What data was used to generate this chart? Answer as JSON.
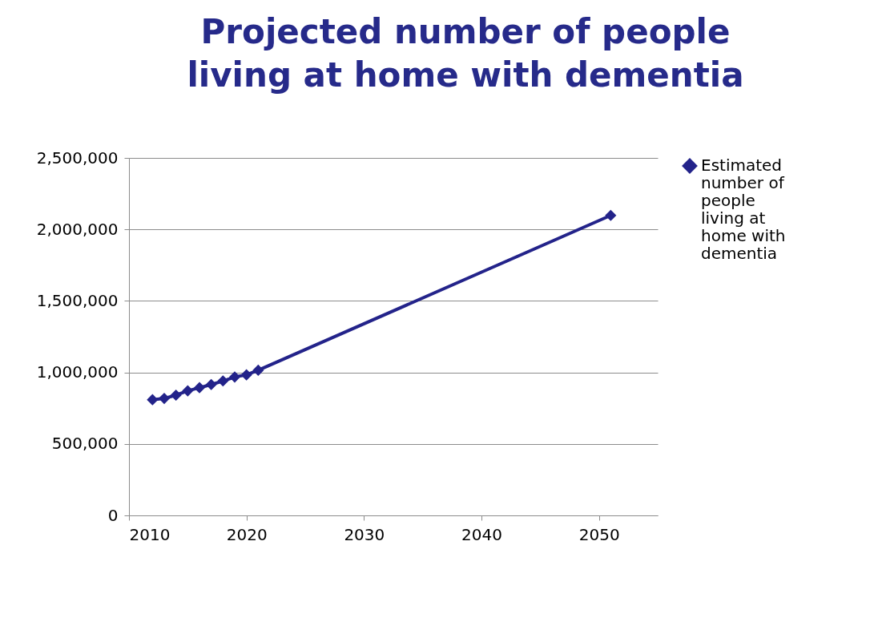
{
  "chart_data": {
    "type": "line",
    "title": "Projected number of people living at home with dementia",
    "x": [
      2012,
      2013,
      2014,
      2015,
      2016,
      2017,
      2018,
      2019,
      2020,
      2021,
      2051
    ],
    "series": [
      {
        "name": "Estimated number of people living at home with dementia",
        "color": "#23238a",
        "values": [
          809000,
          818000,
          841000,
          871000,
          893000,
          915000,
          940000,
          968000,
          983000,
          1015000,
          2098000
        ]
      }
    ],
    "xlim": [
      2010,
      2055
    ],
    "xticks": [
      2010,
      2020,
      2030,
      2040,
      2050
    ],
    "ylim": [
      0,
      2500000
    ],
    "yticks": [
      0,
      {
        "value": 500000,
        "label": "500,000"
      },
      {
        "value": 1000000,
        "label": "1,000,000"
      },
      {
        "value": 1500000,
        "label": "1,500,000"
      },
      {
        "value": 2000000,
        "label": "2,000,000"
      },
      {
        "value": 2500000,
        "label": "2,500,000"
      }
    ],
    "grid": "y",
    "legend": "right",
    "marker": "diamond",
    "line_style": "solid"
  }
}
